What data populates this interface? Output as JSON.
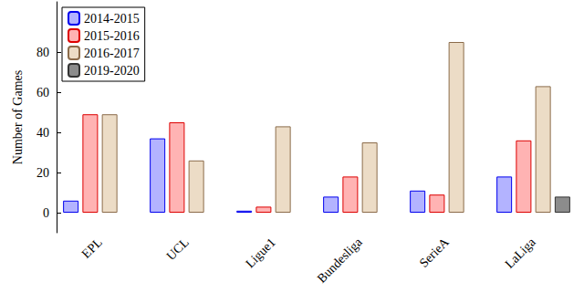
{
  "chart_data": {
    "type": "bar",
    "y_label": "Number of Games",
    "categories": [
      "EPL",
      "UCL",
      "Ligue1",
      "Bundesliga",
      "SerieA",
      "LaLiga"
    ],
    "series": [
      {
        "name": "2014-2015",
        "color": "#b3b3ff",
        "values": [
          6,
          37,
          1,
          8,
          11,
          18
        ]
      },
      {
        "name": "2015-2016",
        "color": "#ffb3b3",
        "values": [
          49,
          45,
          3,
          18,
          9,
          36
        ]
      },
      {
        "name": "2016-2017",
        "color": "#ecdcc6",
        "values": [
          49,
          26,
          43,
          35,
          85,
          63
        ]
      },
      {
        "name": "2019-2020",
        "color": "#8c8c8c",
        "values": [
          null,
          null,
          null,
          null,
          null,
          8
        ]
      }
    ],
    "ylim": [
      -10,
      105
    ],
    "yticks": [
      0,
      20,
      40,
      60,
      80
    ],
    "grid": false,
    "legend": "upper left"
  }
}
